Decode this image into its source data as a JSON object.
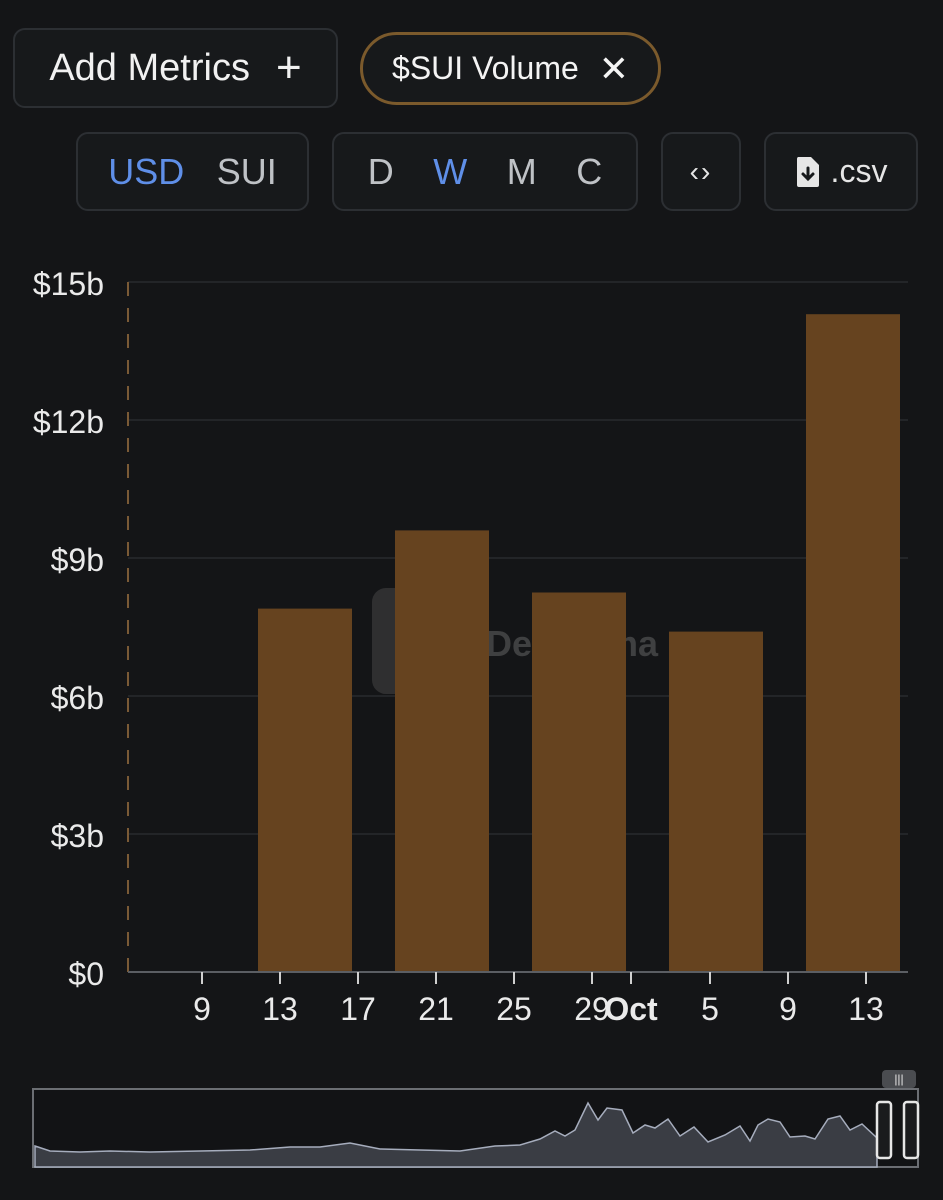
{
  "controls": {
    "add_metrics_label": "Add Metrics",
    "add_icon": "+",
    "metric_chip_label": "$SUI Volume",
    "close_icon": "✕",
    "units": [
      "USD",
      "SUI"
    ],
    "active_unit": "USD",
    "periods": [
      "D",
      "W",
      "M",
      "C"
    ],
    "active_period": "W",
    "embed_icon": "‹›",
    "csv_label": ".csv",
    "csv_icon": "file-download-icon"
  },
  "colors": {
    "background": "#141517",
    "bar": "#66431f",
    "accent": "#5f8fe8",
    "chip_border": "#7b5a2c"
  },
  "watermark_text": "DefiLlama",
  "chart_data": {
    "type": "bar",
    "title": "",
    "xlabel": "",
    "ylabel": "",
    "ylim": [
      0,
      15
    ],
    "y_unit": "billion USD",
    "y_ticks": [
      "$0",
      "$3b",
      "$6b",
      "$9b",
      "$12b",
      "$15b"
    ],
    "x_tick_labels": [
      "9",
      "13",
      "17",
      "21",
      "25",
      "29",
      "Oct",
      "5",
      "9",
      "13"
    ],
    "categories": [
      "Sep 15",
      "Sep 22",
      "Sep 29",
      "Oct 6",
      "Oct 13"
    ],
    "series": [
      {
        "values": [
          7.9,
          9.6,
          8.25,
          7.4,
          14.3
        ]
      }
    ],
    "grid": true,
    "legend": "none"
  }
}
